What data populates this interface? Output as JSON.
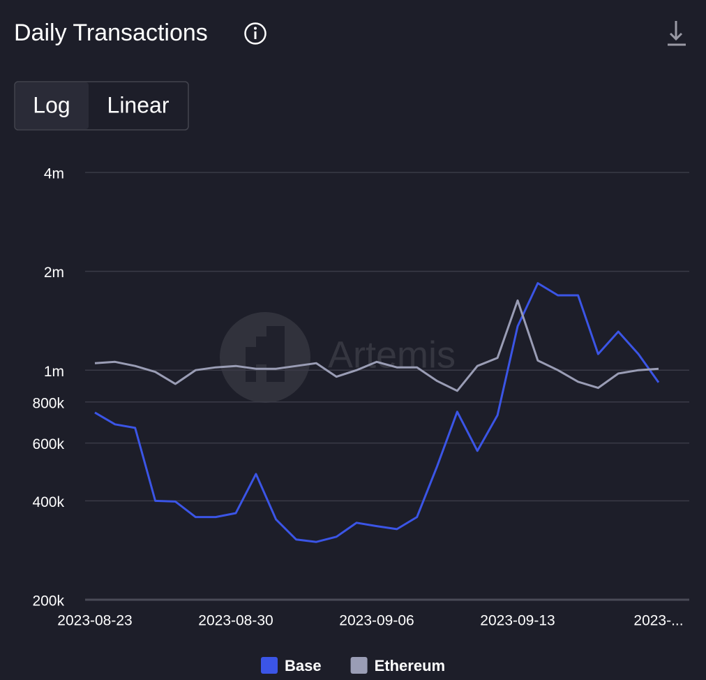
{
  "header": {
    "title": "Daily Transactions"
  },
  "toggle": {
    "options": [
      "Log",
      "Linear"
    ],
    "active": 0
  },
  "watermark": "Artemis",
  "chart_data": {
    "type": "line",
    "log_scale": true,
    "grid": true,
    "legend": "bottom",
    "x": [
      "2023-08-23",
      "2023-08-24",
      "2023-08-25",
      "2023-08-26",
      "2023-08-27",
      "2023-08-28",
      "2023-08-29",
      "2023-08-30",
      "2023-08-31",
      "2023-09-01",
      "2023-09-02",
      "2023-09-03",
      "2023-09-04",
      "2023-09-05",
      "2023-09-06",
      "2023-09-07",
      "2023-09-08",
      "2023-09-09",
      "2023-09-10",
      "2023-09-11",
      "2023-09-12",
      "2023-09-13",
      "2023-09-14",
      "2023-09-15",
      "2023-09-16",
      "2023-09-17",
      "2023-09-18",
      "2023-09-19",
      "2023-09-20"
    ],
    "xticks": [
      "2023-08-23",
      "2023-08-30",
      "2023-09-06",
      "2023-09-13",
      {
        "value": "2023-09-20",
        "label": "2023-..."
      }
    ],
    "ylim": [
      200000,
      4000000
    ],
    "yticks": [
      {
        "value": 200000,
        "label": "200k"
      },
      {
        "value": 400000,
        "label": "400k"
      },
      {
        "value": 600000,
        "label": "600k"
      },
      {
        "value": 800000,
        "label": "800k"
      },
      {
        "value": 1000000,
        "label": "1m"
      },
      {
        "value": 2000000,
        "label": "2m"
      },
      {
        "value": 4000000,
        "label": "4m"
      }
    ],
    "series": [
      {
        "name": "Base",
        "color": "#3b55e6",
        "values": [
          743000,
          684000,
          667000,
          400000,
          398000,
          357000,
          357000,
          367000,
          483000,
          351000,
          305000,
          300000,
          311000,
          343000,
          335000,
          328000,
          357000,
          510000,
          747000,
          568000,
          729000,
          1360000,
          1840000,
          1690000,
          1690000,
          1120000,
          1310000,
          1120000,
          918000
        ]
      },
      {
        "name": "Ethereum",
        "color": "#9a9db5",
        "values": [
          1050000,
          1060000,
          1030000,
          988000,
          908000,
          1000000,
          1020000,
          1030000,
          1010000,
          1010000,
          1030000,
          1050000,
          955000,
          1000000,
          1060000,
          1020000,
          1020000,
          927000,
          865000,
          1030000,
          1090000,
          1630000,
          1070000,
          1000000,
          922000,
          883000,
          977000,
          1000000,
          1010000
        ]
      }
    ]
  }
}
